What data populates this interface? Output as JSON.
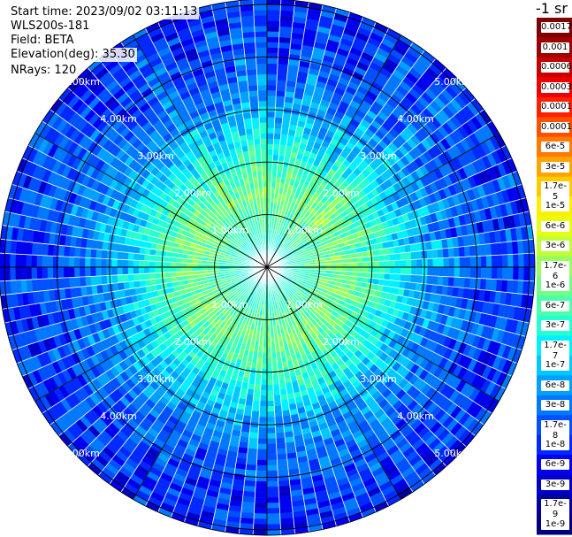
{
  "info": {
    "start_time": "Start time: 2023/09/02 03:11:13",
    "instrument": "WLS200s-181",
    "field": "Field: BETA",
    "elevation": "Elevation(deg): 35.30",
    "nrays": "NRays: 120"
  },
  "colorbar": {
    "unit": "-1 sr",
    "ticks": [
      "0.0017",
      "0.001",
      "0.0006",
      "0.0003",
      "0.00017",
      "0.0001",
      "6e-5",
      "3e-5",
      "1.7e-5",
      "1e-5",
      "6e-6",
      "3e-6",
      "1.7e-6",
      "1e-6",
      "6e-7",
      "3e-7",
      "1.7e-7",
      "1e-7",
      "6e-8",
      "3e-8",
      "1.7e-8",
      "1e-8",
      "6e-9",
      "3e-9",
      "1.7e-9",
      "1e-9"
    ],
    "colors": [
      "#7f0000",
      "#a00000",
      "#c80000",
      "#ee0000",
      "#ff2000",
      "#ff5000",
      "#ff7a00",
      "#ffa500",
      "#ffcb00",
      "#ffee00",
      "#e6ff10",
      "#bfff38",
      "#98ff5f",
      "#72ff85",
      "#4cffab",
      "#26ffd1",
      "#00f0ff",
      "#00c8ff",
      "#00a0ff",
      "#0078ff",
      "#0050ff",
      "#0028ff",
      "#0000ee",
      "#0000c8",
      "#0000a0",
      "#00007f"
    ]
  },
  "chart_data": {
    "type": "heatmap",
    "projection": "polar PPI",
    "field": "BETA",
    "unit": "-1 sr",
    "elevation_deg": 35.3,
    "nrays": 120,
    "range_rings_km": [
      1,
      2,
      3,
      4,
      5
    ],
    "range_labels": [
      "1.00km",
      "2.00km",
      "3.00km",
      "4.00km",
      "5.00km"
    ],
    "max_range_km": 5.1,
    "color_scale": "log",
    "color_range": [
      1e-09,
      0.0017
    ],
    "approx_profile": [
      {
        "range_km": 0.2,
        "beta": 2.5e-07
      },
      {
        "range_km": 0.7,
        "beta": 6e-07
      },
      {
        "range_km": 1.4,
        "beta": 1.5e-06
      },
      {
        "range_km": 2.0,
        "beta": 6e-07
      },
      {
        "range_km": 2.8,
        "beta": 1.2e-07
      },
      {
        "range_km": 3.5,
        "beta": 4e-08
      },
      {
        "range_km": 4.3,
        "beta": 2e-08
      },
      {
        "range_km": 5.0,
        "beta": 1.5e-08
      }
    ]
  }
}
